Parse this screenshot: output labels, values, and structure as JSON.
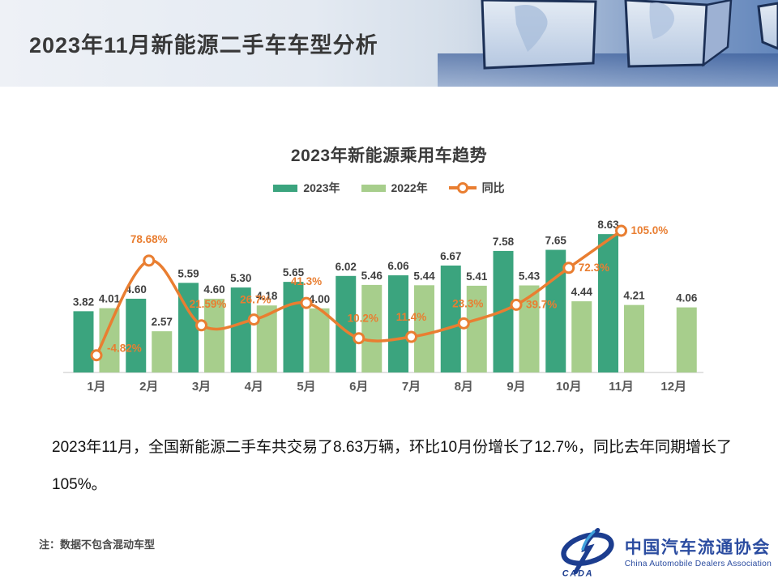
{
  "header": {
    "title": "2023年11月新能源二手车车型分析"
  },
  "chart_data": {
    "type": "bar",
    "title": "2023年新能源乘用车趋势",
    "categories": [
      "1月",
      "2月",
      "3月",
      "4月",
      "5月",
      "6月",
      "7月",
      "8月",
      "9月",
      "10月",
      "11月",
      "12月"
    ],
    "series": [
      {
        "name": "2023年",
        "type": "bar",
        "color": "#3BA47E",
        "values": [
          3.82,
          4.6,
          5.59,
          5.3,
          5.65,
          6.02,
          6.06,
          6.67,
          7.58,
          7.65,
          8.63,
          null
        ],
        "labels": [
          "3.82",
          "4.60",
          "5.59",
          "5.30",
          "5.65",
          "6.02",
          "6.06",
          "6.67",
          "7.58",
          "7.65",
          "8.63",
          null
        ]
      },
      {
        "name": "2022年",
        "type": "bar",
        "color": "#A7CE8C",
        "values": [
          4.01,
          2.57,
          4.6,
          4.18,
          4.0,
          5.46,
          5.44,
          5.41,
          5.43,
          4.44,
          4.21,
          4.06
        ],
        "labels": [
          "4.01",
          "2.57",
          "4.60",
          "4.18",
          "4.00",
          "5.46",
          "5.44",
          "5.41",
          "5.43",
          "4.44",
          "4.21",
          "4.06"
        ]
      },
      {
        "name": "同比",
        "type": "line",
        "color": "#E97E31",
        "unit": "%",
        "values": [
          -4.82,
          78.68,
          21.59,
          26.7,
          41.3,
          10.2,
          11.4,
          23.3,
          39.7,
          72.3,
          105.0,
          null
        ],
        "labels": [
          "-4.82%",
          "78.68%",
          "21.59%",
          "26.7%",
          "41.3%",
          "10.2%",
          "11.4%",
          "23.3%",
          "39.7%",
          "72.3%",
          "105.0%",
          null
        ]
      }
    ],
    "legend_position": "top",
    "grid": false,
    "y_axis_visible": false,
    "ylim_bars": [
      0,
      9
    ],
    "ylim_line_pct": [
      -20,
      120
    ]
  },
  "body": {
    "paragraph": "2023年11月，全国新能源二手车共交易了8.63万辆，环比10月份增长了12.7%，同比去年同期增长了105%。"
  },
  "footer": {
    "note": "注：数据不包含混动车型",
    "logo_text": "CADA",
    "org_cn": "中国汽车流通协会",
    "org_en": "China Automobile Dealers Association"
  },
  "colors": {
    "bar_2023": "#3BA47E",
    "bar_2022": "#A7CE8C",
    "line_yoy": "#E97E31",
    "value_label": "#404040",
    "axis_label": "#595959",
    "logo_blue": "#2B4CA0"
  }
}
